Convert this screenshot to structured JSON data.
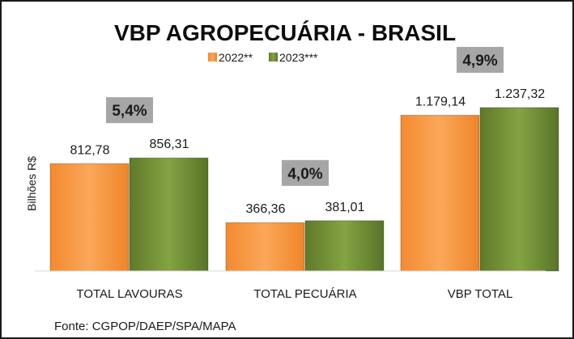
{
  "chart_data": {
    "type": "bar",
    "title": "VBP AGROPECUÁRIA - BRASIL",
    "ylabel": "Bilhões R$",
    "categories": [
      "TOTAL LAVOURAS",
      "TOTAL PECUÁRIA",
      "VBP TOTAL"
    ],
    "series": [
      {
        "name": "2022**",
        "values": [
          812.78,
          366.36,
          1179.14
        ],
        "labels": [
          "812,78",
          "366,36",
          "1.179,14"
        ],
        "color": "#f79646"
      },
      {
        "name": "2023***",
        "values": [
          856.31,
          381.01,
          1237.32
        ],
        "labels": [
          "856,31",
          "381,01",
          "1.237,32"
        ],
        "color": "#77933c"
      }
    ],
    "growth_labels": [
      "5,4%",
      "4,0%",
      "4,9%"
    ],
    "growth_box_color": "#a6a6a6",
    "ylim": [
      0,
      1500
    ],
    "grid": false,
    "legend_position": "top",
    "source": "Fonte: CGPOP/DAEP/SPA/MAPA"
  }
}
